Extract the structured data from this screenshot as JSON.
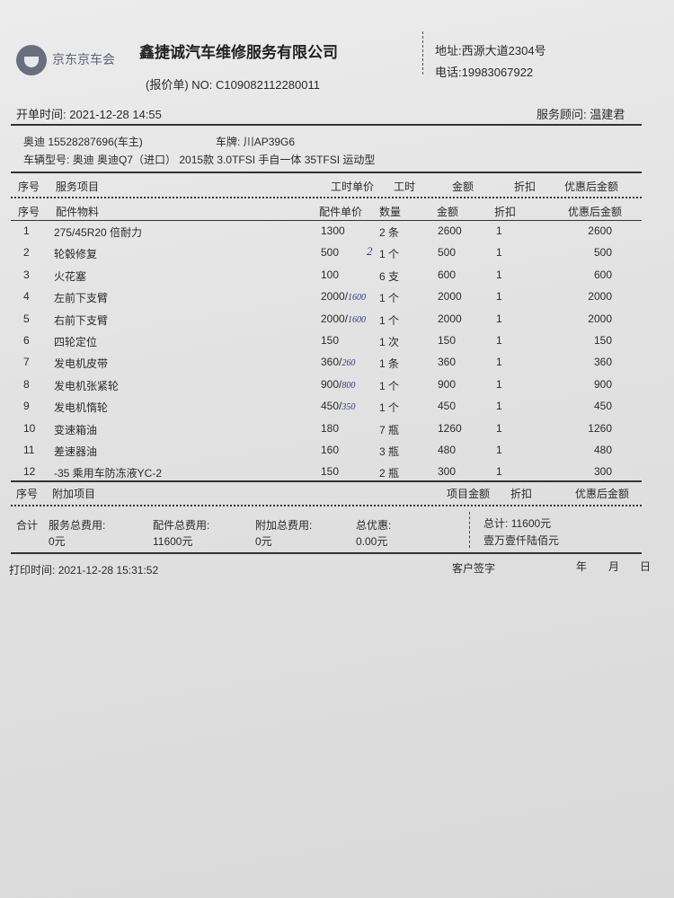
{
  "header": {
    "brand": "京东京车会",
    "company": "鑫捷诚汽车维修服务有限公司",
    "doc_type": "(报价单)",
    "no_label": "NO:",
    "no": "C109082112280011",
    "address_label": "地址:",
    "address": "西源大道2304号",
    "phone_label": "电话:",
    "phone": "19983067922"
  },
  "meta": {
    "open_time_label": "开单时间:",
    "open_time": "2021-12-28 14:55",
    "advisor_label": "服务顾问:",
    "advisor": "温建君",
    "owner": "奥迪 15528287696(车主)",
    "plate_label": "车牌:",
    "plate": "川AP39G6",
    "model_label": "车辆型号:",
    "model": "奥迪 奥迪Q7（进口） 2015款 3.0TFSI 手自一体 35TFSI 运动型"
  },
  "service_header": [
    "序号",
    "服务项目",
    "工时单价",
    "工时",
    "金额",
    "折扣",
    "优惠后金额"
  ],
  "parts_header": [
    "序号",
    "配件物料",
    "配件单价",
    "数量",
    "金额",
    "折扣",
    "优惠后金额"
  ],
  "parts": [
    {
      "no": "1",
      "name": "275/45R20 倍耐力",
      "price": "1300",
      "note": "",
      "qty": "2 条",
      "amount": "2600",
      "discount": "1",
      "final": "2600"
    },
    {
      "no": "2",
      "name": "轮毂修复",
      "price": "500",
      "note": "",
      "qty": "1 个",
      "qty_note": "2",
      "amount": "500",
      "discount": "1",
      "final": "500"
    },
    {
      "no": "3",
      "name": "火花塞",
      "price": "100",
      "note": "",
      "qty": "6 支",
      "amount": "600",
      "discount": "1",
      "final": "600"
    },
    {
      "no": "4",
      "name": "左前下支臂",
      "price": "2000/",
      "note": "1600",
      "qty": "1 个",
      "amount": "2000",
      "discount": "1",
      "final": "2000"
    },
    {
      "no": "5",
      "name": "右前下支臂",
      "price": "2000/",
      "note": "1600",
      "qty": "1 个",
      "amount": "2000",
      "discount": "1",
      "final": "2000"
    },
    {
      "no": "6",
      "name": "四轮定位",
      "price": "150",
      "note": "",
      "qty": "1 次",
      "amount": "150",
      "discount": "1",
      "final": "150"
    },
    {
      "no": "7",
      "name": "发电机皮带",
      "price": "360/",
      "note": "260",
      "qty": "1 条",
      "amount": "360",
      "discount": "1",
      "final": "360"
    },
    {
      "no": "8",
      "name": "发电机张紧轮",
      "price": "900/",
      "note": "800",
      "qty": "1 个",
      "amount": "900",
      "discount": "1",
      "final": "900"
    },
    {
      "no": "9",
      "name": "发电机惰轮",
      "price": "450/",
      "note": "350",
      "qty": "1 个",
      "amount": "450",
      "discount": "1",
      "final": "450"
    },
    {
      "no": "10",
      "name": "变速箱油",
      "price": "180",
      "note": "",
      "qty": "7 瓶",
      "amount": "1260",
      "discount": "1",
      "final": "1260"
    },
    {
      "no": "11",
      "name": "差速器油",
      "price": "160",
      "note": "",
      "qty": "3 瓶",
      "amount": "480",
      "discount": "1",
      "final": "480"
    },
    {
      "no": "12",
      "name": "-35 乘用车防冻液YC-2",
      "price": "150",
      "note": "",
      "qty": "2 瓶",
      "amount": "300",
      "discount": "1",
      "final": "300"
    }
  ],
  "extra_header": [
    "序号",
    "附加项目",
    "项目金额",
    "折扣",
    "优惠后金额"
  ],
  "totals": {
    "label": "合计",
    "service_label": "服务总费用:",
    "service": "0元",
    "parts_label": "配件总费用:",
    "parts": "11600元",
    "extra_label": "附加总费用:",
    "extra": "0元",
    "discount_label": "总优惠:",
    "discount": "0.00元",
    "total_label": "总计:",
    "total": "11600元",
    "total_cn": "壹万壹仟陆佰元"
  },
  "footer": {
    "print_label": "打印时间:",
    "print_time": "2021-12-28 15:31:52",
    "sign": "客户签字",
    "year": "年",
    "month": "月",
    "day": "日"
  }
}
